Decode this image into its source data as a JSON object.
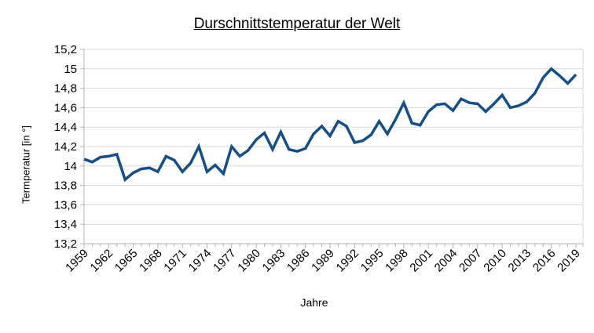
{
  "chart_data": {
    "type": "line",
    "title": "Durschnittstemperatur der Welt",
    "xlabel": "Jahre",
    "ylabel": "Termperatur [in °]",
    "x": [
      1959,
      1960,
      1961,
      1962,
      1963,
      1964,
      1965,
      1966,
      1967,
      1968,
      1969,
      1970,
      1971,
      1972,
      1973,
      1974,
      1975,
      1976,
      1977,
      1978,
      1979,
      1980,
      1981,
      1982,
      1983,
      1984,
      1985,
      1986,
      1987,
      1988,
      1989,
      1990,
      1991,
      1992,
      1993,
      1994,
      1995,
      1996,
      1997,
      1998,
      1999,
      2000,
      2001,
      2002,
      2003,
      2004,
      2005,
      2006,
      2007,
      2008,
      2009,
      2010,
      2011,
      2012,
      2013,
      2014,
      2015,
      2016,
      2017,
      2018,
      2019
    ],
    "values": [
      14.07,
      14.04,
      14.09,
      14.1,
      14.12,
      13.86,
      13.93,
      13.97,
      13.98,
      13.94,
      14.1,
      14.06,
      13.94,
      14.03,
      14.2,
      13.94,
      14.01,
      13.92,
      14.2,
      14.1,
      14.16,
      14.27,
      14.34,
      14.17,
      14.35,
      14.17,
      14.15,
      14.18,
      14.33,
      14.41,
      14.31,
      14.46,
      14.41,
      14.24,
      14.26,
      14.32,
      14.46,
      14.33,
      14.48,
      14.65,
      14.44,
      14.42,
      14.56,
      14.63,
      14.64,
      14.57,
      14.69,
      14.65,
      14.64,
      14.56,
      14.64,
      14.73,
      14.6,
      14.62,
      14.66,
      14.75,
      14.91,
      15.0,
      14.93,
      14.85,
      14.94
    ],
    "ylim": [
      13.2,
      15.2
    ],
    "y_tick_step": 0.2,
    "y_tick_labels": [
      "15,2",
      "15",
      "14,8",
      "14,6",
      "14,4",
      "14,2",
      "14",
      "13,8",
      "13,6",
      "13,4",
      "13,2"
    ],
    "x_tick_labels": [
      "1959",
      "1962",
      "1965",
      "1968",
      "1971",
      "1974",
      "1977",
      "1980",
      "1983",
      "1986",
      "1989",
      "1992",
      "1995",
      "1998",
      "2001",
      "2004",
      "2007",
      "2010",
      "2013",
      "2016",
      "2019"
    ],
    "x_label_every": 3,
    "x_tick_label_rotation": -45,
    "grid": "horizontal",
    "legend": "none",
    "decimal_separator": ",",
    "colors": {
      "series_line": "#154f87",
      "gridline": "#d9d9d9",
      "axis": "#b3b3b3",
      "text": "#000000",
      "background": "#ffffff"
    }
  }
}
